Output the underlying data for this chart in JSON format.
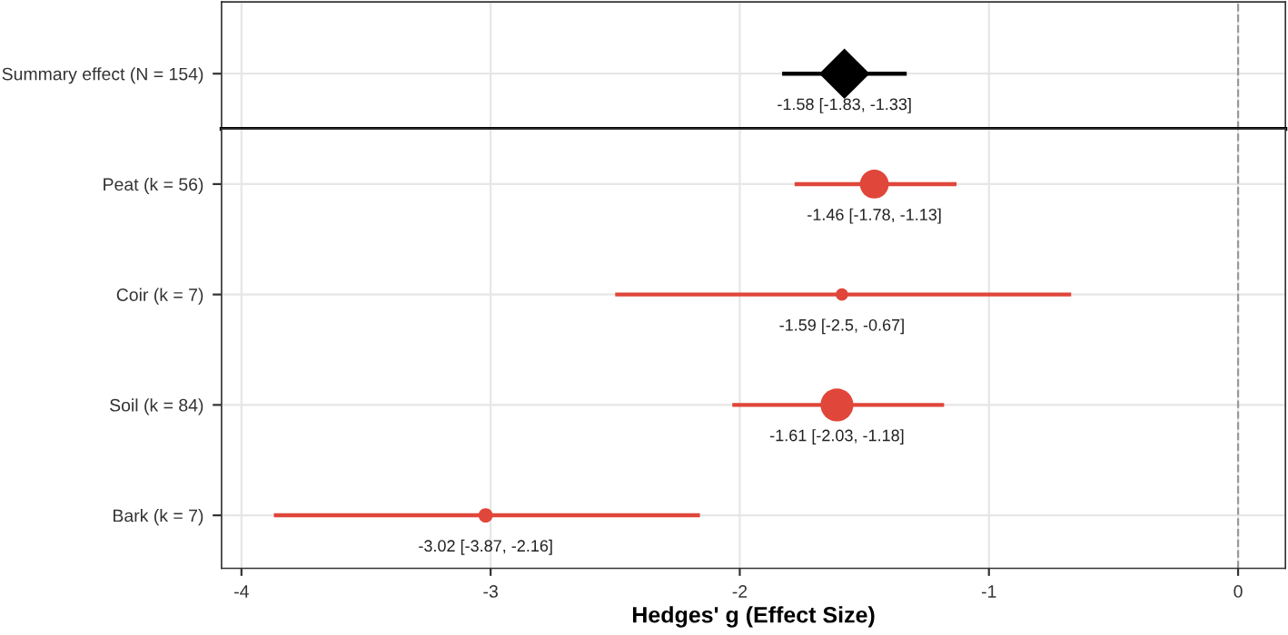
{
  "chart_data": [
    {
      "type": "scatter",
      "orientation": "horizontal",
      "categories": [
        "Summary effect (N = 154)"
      ],
      "series": [
        {
          "type": "scatter",
          "marker": "diamond",
          "color": "#000000",
          "values": [
            -1.58
          ],
          "errors": [
            [
              -1.83,
              -1.33
            ]
          ],
          "value_labels": [
            "-1.58 [-1.83, -1.33]"
          ]
        }
      ],
      "xlim": [
        -4.08,
        0.19
      ],
      "xticks": [
        -4,
        -3,
        -2,
        -1,
        0
      ],
      "tick_labels": "y",
      "grid": true,
      "legend": false,
      "ref_lines": [
        {
          "axis": "x",
          "value": 0,
          "color": "#999999",
          "line_style": "dashed"
        }
      ]
    },
    {
      "type": "bubble",
      "orientation": "horizontal",
      "xlabel": "Hedges' g (Effect Size)",
      "categories": [
        "Peat (k = 56)",
        "Coir (k = 7)",
        "Soil (k = 84)",
        "Bark (k = 7)"
      ],
      "series": [
        {
          "marker": "circle",
          "color": "#e0463a",
          "values": [
            -1.46,
            -1.59,
            -1.61,
            -3.02
          ],
          "sizes": [
            0.77,
            0.14,
            1,
            0.19
          ],
          "errors": [
            [
              -1.78,
              -1.13
            ],
            [
              -2.5,
              -0.67
            ],
            [
              -2.03,
              -1.18
            ],
            [
              -3.87,
              -2.16
            ]
          ],
          "value_labels": [
            "-1.46 [-1.78, -1.13]",
            "-1.59 [-2.5, -0.67]",
            "-1.61 [-2.03, -1.18]",
            "-3.02 [-3.87, -2.16]"
          ]
        }
      ],
      "xlim": [
        -4.08,
        0.19
      ],
      "xticks": [
        -4,
        -3,
        -2,
        -1,
        0
      ],
      "grid": true,
      "legend": false,
      "ref_lines": [
        {
          "axis": "x",
          "value": 0,
          "color": "#999999",
          "line_style": "dashed"
        }
      ]
    }
  ]
}
